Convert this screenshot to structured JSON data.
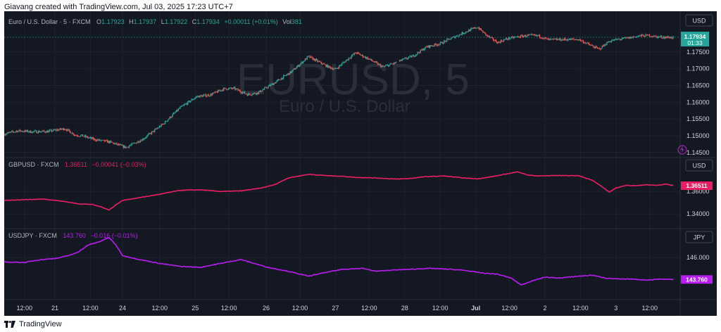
{
  "header": {
    "caption": "Giavang created with TradingView.com, Jul 03, 2025 17:23 UTC+7"
  },
  "footer": {
    "brand": "TradingView",
    "logo_icon": "tradingview-logo-icon"
  },
  "theme": {
    "background": "#141823",
    "grid": "#1e2230",
    "text": "#b2b5be",
    "axis_text": "#d1d4dc",
    "up": "#26a69a",
    "down": "#ef5350",
    "watermark": "#2a2e39"
  },
  "chart_data": [
    {
      "type": "candlestick",
      "symbol": "EURUSD, 5",
      "watermark": "EURUSD, 5",
      "watermark_sub": "Euro / U.S. Dollar",
      "legend": {
        "name": "Euro / U.S. Dollar · 5 · FXCM",
        "o_label": "O",
        "o": "1.17923",
        "h_label": "H",
        "h": "1.17937",
        "l_label": "L",
        "l": "1.17922",
        "c_label": "C",
        "c": "1.17934",
        "change": "+0.00011 (+0.01%)",
        "vol_label": "Vol",
        "vol": "381"
      },
      "currency": "USD",
      "last_price": "1.17934",
      "countdown": "01:33",
      "y_ticks": [
        "1.17500",
        "1.17000",
        "1.16500",
        "1.16000",
        "1.15500",
        "1.15000",
        "1.14500"
      ],
      "ylim": [
        1.1435,
        1.1825
      ],
      "path_x": [
        0,
        4,
        8,
        13,
        16,
        18,
        21,
        23,
        27,
        31,
        36,
        41,
        47,
        52,
        57,
        61,
        65,
        68,
        72,
        75,
        80,
        85,
        90,
        96,
        98,
        100,
        104,
        108,
        112,
        116
      ],
      "path_y": [
        1.1505,
        1.1515,
        1.1512,
        1.1513,
        1.1518,
        1.1521,
        1.1502,
        1.15,
        1.1488,
        1.1482,
        1.1465,
        1.149,
        1.1535,
        1.1583,
        1.1617,
        1.1622,
        1.164,
        1.1641,
        1.1623,
        1.1628,
        1.1658,
        1.1691,
        1.1736,
        1.1705,
        1.1698,
        1.1715,
        1.1748,
        1.1728,
        1.1705,
        1.1718
      ],
      "path2_x": [
        117,
        121,
        125,
        129,
        133,
        137,
        140,
        143,
        146,
        149,
        152,
        155,
        158,
        161,
        166,
        170,
        174,
        176,
        179,
        182,
        185,
        188,
        191,
        193,
        195,
        198
      ],
      "path2_y": [
        1.1723,
        1.1738,
        1.1765,
        1.1775,
        1.1794,
        1.1812,
        1.1824,
        1.1797,
        1.1778,
        1.179,
        1.1795,
        1.1799,
        1.1798,
        1.1786,
        1.1787,
        1.1787,
        1.1767,
        1.1758,
        1.1782,
        1.1788,
        1.1792,
        1.1798,
        1.1799,
        1.1795,
        1.1794,
        1.1793
      ]
    },
    {
      "type": "line",
      "symbol": "GBPUSD",
      "legend": {
        "name": "GBPUSD · FXCM",
        "value": "1.36511",
        "change": "−0.00041 (−0.03%)"
      },
      "color": "#e91e63",
      "currency": "USD",
      "last_price": "1.36511",
      "y_ticks": [
        "1.36000",
        "1.34000"
      ],
      "ylim": [
        1.327,
        1.387
      ],
      "x": [
        0,
        6,
        12,
        18,
        22,
        26,
        29,
        31,
        33,
        35,
        40,
        46,
        52,
        58,
        64,
        70,
        76,
        80,
        84,
        90,
        96,
        100,
        104,
        110,
        116,
        120,
        124,
        130,
        136,
        140,
        144,
        148,
        152,
        155,
        158,
        164,
        170,
        174,
        177,
        179,
        181,
        184,
        187,
        190,
        193,
        196,
        198
      ],
      "y": [
        1.352,
        1.3528,
        1.3532,
        1.351,
        1.349,
        1.3485,
        1.346,
        1.3435,
        1.348,
        1.352,
        1.3545,
        1.3575,
        1.361,
        1.3615,
        1.36,
        1.3605,
        1.363,
        1.366,
        1.372,
        1.3752,
        1.374,
        1.3735,
        1.3725,
        1.372,
        1.371,
        1.3715,
        1.373,
        1.3738,
        1.372,
        1.3712,
        1.373,
        1.3752,
        1.3775,
        1.3745,
        1.3738,
        1.3742,
        1.374,
        1.37,
        1.364,
        1.3595,
        1.363,
        1.3655,
        1.365,
        1.366,
        1.3655,
        1.3665,
        1.3651
      ]
    },
    {
      "type": "line",
      "symbol": "USDJPY",
      "legend": {
        "name": "USDJPY · FXCM",
        "value": "143.760",
        "change": "−0.016 (−0.01%)"
      },
      "color": "#b81cf0",
      "currency": "JPY",
      "last_price": "143.760",
      "y_ticks": [
        "146.000"
      ],
      "ylim": [
        141.7,
        148.6
      ],
      "x": [
        0,
        6,
        10,
        16,
        20,
        22,
        25,
        28,
        31,
        33,
        35,
        40,
        46,
        52,
        58,
        64,
        70,
        74,
        78,
        84,
        90,
        94,
        100,
        106,
        110,
        114,
        120,
        126,
        132,
        136,
        142,
        146,
        150,
        153,
        156,
        160,
        164,
        170,
        174,
        178,
        182,
        186,
        190,
        194,
        198
      ],
      "y": [
        145.55,
        145.5,
        145.75,
        145.95,
        146.3,
        146.6,
        147.3,
        147.6,
        148.05,
        147.3,
        146.2,
        145.8,
        145.4,
        145.1,
        145.0,
        145.4,
        145.8,
        145.4,
        145.0,
        144.6,
        144.1,
        144.4,
        144.8,
        144.9,
        144.6,
        144.7,
        144.8,
        144.9,
        144.8,
        144.7,
        144.4,
        144.3,
        143.9,
        143.2,
        143.6,
        144.0,
        143.9,
        144.1,
        144.2,
        143.9,
        143.8,
        143.8,
        143.7,
        143.8,
        143.76
      ]
    }
  ],
  "x_axis": {
    "labels": [
      {
        "t": 6.0,
        "text": "12:00",
        "bold": false
      },
      {
        "t": 15.0,
        "text": "21",
        "bold": false
      },
      {
        "t": 25.5,
        "text": "12:00",
        "bold": false
      },
      {
        "t": 35.0,
        "text": "24",
        "bold": false
      },
      {
        "t": 46.0,
        "text": "12:00",
        "bold": false
      },
      {
        "t": 56.5,
        "text": "25",
        "bold": false
      },
      {
        "t": 66.5,
        "text": "12:00",
        "bold": false
      },
      {
        "t": 77.5,
        "text": "26",
        "bold": false
      },
      {
        "t": 87.5,
        "text": "12:00",
        "bold": false
      },
      {
        "t": 98.0,
        "text": "27",
        "bold": false
      },
      {
        "t": 108.0,
        "text": "12:00",
        "bold": false
      },
      {
        "t": 118.5,
        "text": "28",
        "bold": false
      },
      {
        "t": 129.0,
        "text": "12:00",
        "bold": false
      },
      {
        "t": 139.5,
        "text": "Jul",
        "bold": true
      },
      {
        "t": 149.5,
        "text": "12:00",
        "bold": false
      },
      {
        "t": 160.0,
        "text": "2",
        "bold": false
      },
      {
        "t": 170.5,
        "text": "12:00",
        "bold": false
      },
      {
        "t": 181.0,
        "text": "3",
        "bold": false
      },
      {
        "t": 191.0,
        "text": "12:00",
        "bold": false
      }
    ],
    "tmax": 200
  }
}
